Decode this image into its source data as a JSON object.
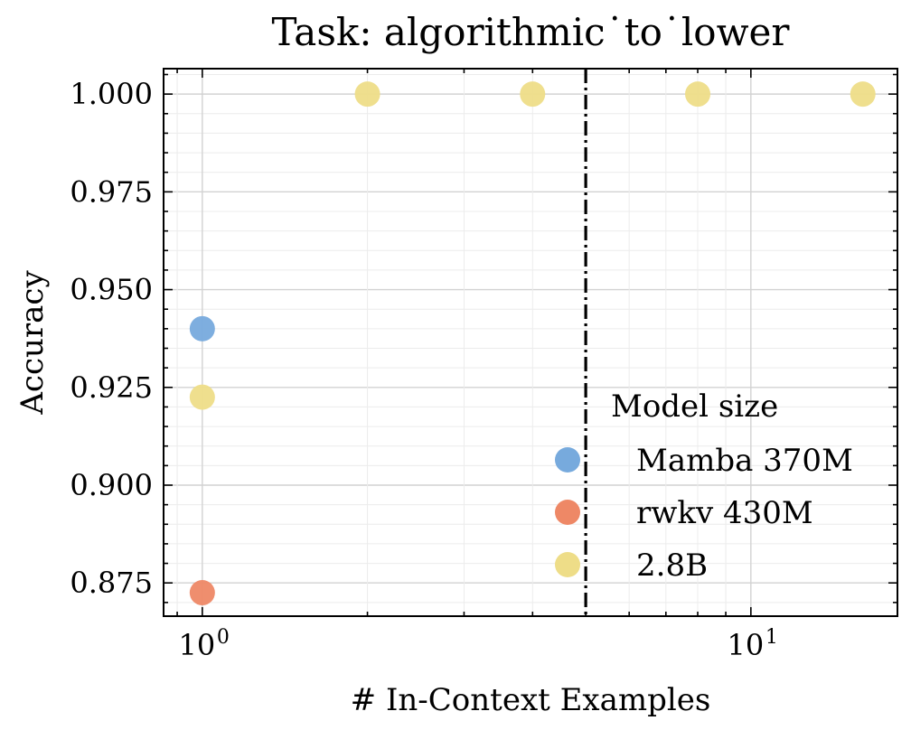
{
  "chart_data": {
    "type": "scatter",
    "title": "Task: algorithmic˙to˙lower",
    "xlabel": "# In-Context Examples",
    "ylabel": "Accuracy",
    "x_scale": "log",
    "xlim": [
      0.85,
      18.5
    ],
    "ylim": [
      0.8665,
      1.0065
    ],
    "y_ticks": [
      0.875,
      0.9,
      0.925,
      0.95,
      0.975,
      1.0
    ],
    "y_tick_labels": [
      "0.875",
      "0.900",
      "0.925",
      "0.950",
      "0.975",
      "1.000"
    ],
    "x_ticks": [
      {
        "value": 1,
        "base": "10",
        "exp": "0"
      },
      {
        "value": 10,
        "base": "10",
        "exp": "1"
      }
    ],
    "grid": true,
    "vline": {
      "x": 5,
      "style": "dash-dot",
      "color": "#000000"
    },
    "legend": {
      "title": "Model size",
      "placement": "lower right"
    },
    "series": [
      {
        "name": "Mamba 370M",
        "color": "#77aadd",
        "points": [
          {
            "x": 1,
            "y": 0.94
          }
        ]
      },
      {
        "name": "rwkv 430M",
        "color": "#ee8866",
        "points": [
          {
            "x": 1,
            "y": 0.8725
          }
        ]
      },
      {
        "name": "2.8B",
        "color": "#eedd88",
        "points": [
          {
            "x": 1,
            "y": 0.9225
          },
          {
            "x": 2,
            "y": 1.0
          },
          {
            "x": 4,
            "y": 1.0
          },
          {
            "x": 8,
            "y": 1.0
          },
          {
            "x": 16,
            "y": 1.0
          }
        ]
      }
    ]
  }
}
